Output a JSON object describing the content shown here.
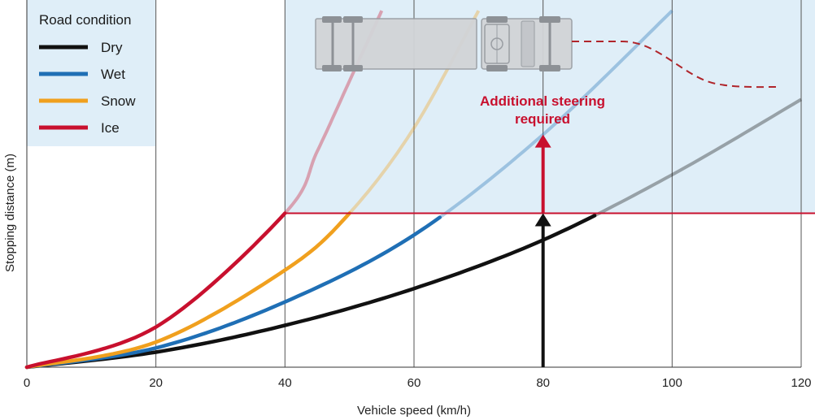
{
  "chart_data": {
    "type": "line",
    "title": "",
    "xlabel": "Vehicle speed (km/h)",
    "ylabel": "Stopping distance (m)",
    "xlim": [
      0,
      120
    ],
    "x_ticks": [
      "0",
      "20",
      "40",
      "60",
      "80",
      "100",
      "120"
    ],
    "grid": "vertical",
    "legend": {
      "title": "Road condition",
      "placement": "top-left"
    },
    "series": [
      {
        "name": "Dry",
        "color": "#111111",
        "x": [
          0,
          20,
          40,
          60,
          80,
          100,
          120
        ],
        "y": [
          0.0,
          0.9,
          2.5,
          4.7,
          7.6,
          11.5,
          16.0
        ]
      },
      {
        "name": "Wet",
        "color": "#1f6fb5",
        "x": [
          0,
          20,
          40,
          60,
          80,
          100
        ],
        "y": [
          0.0,
          1.15,
          3.9,
          7.9,
          13.9,
          21.3
        ]
      },
      {
        "name": "Snow",
        "color": "#f0a01e",
        "x": [
          0,
          20,
          40,
          50,
          60,
          70
        ],
        "y": [
          0.0,
          1.5,
          5.8,
          9.2,
          14.3,
          21.3
        ]
      },
      {
        "name": "Ice",
        "color": "#c8102e",
        "x": [
          0,
          20,
          40,
          45,
          50,
          55
        ],
        "y": [
          0.0,
          2.4,
          9.2,
          12.9,
          17.1,
          21.3
        ]
      }
    ],
    "threshold": {
      "y": 9.2,
      "color": "#c8102e"
    },
    "annotations": [
      {
        "text_lines": [
          "Additional steering",
          "required"
        ],
        "color": "#c8102e"
      }
    ],
    "arrows": [
      {
        "x": 80,
        "from_y": 0,
        "to_y": 9.2,
        "color": "#111111"
      },
      {
        "x": 80,
        "from_y": 9.2,
        "to_y": 13.9,
        "color": "#c8102e"
      }
    ]
  }
}
